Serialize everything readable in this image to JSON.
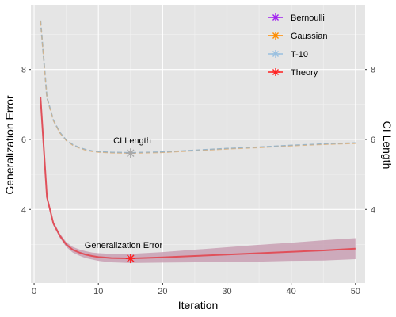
{
  "chart_data": {
    "type": "line",
    "xlabel": "Iteration",
    "ylabel": "Generalization Error",
    "y2label": "CI Length",
    "xlim": [
      -0.5,
      51.5
    ],
    "ylim": [
      1.9,
      9.85
    ],
    "x_ticks": [
      0,
      10,
      20,
      30,
      40,
      50
    ],
    "y_ticks": [
      4,
      6,
      8
    ],
    "y2_ticks": [
      4,
      6,
      8
    ],
    "grid": true,
    "legend_position": "top-right",
    "legend": [
      {
        "name": "Bernoulli",
        "color": "#a020f0"
      },
      {
        "name": "Gaussian",
        "color": "#ff8c00"
      },
      {
        "name": "T-10",
        "color": "#9ac0e0"
      },
      {
        "name": "Theory",
        "color": "#ff2020"
      }
    ],
    "x": [
      1,
      2,
      3,
      4,
      5,
      6,
      7,
      8,
      9,
      10,
      12,
      15,
      20,
      25,
      30,
      35,
      40,
      45,
      50
    ],
    "series": [
      {
        "name": "Generalization Error",
        "color": "#e0505a",
        "values": [
          7.2,
          4.35,
          3.6,
          3.25,
          3.0,
          2.85,
          2.77,
          2.71,
          2.67,
          2.64,
          2.61,
          2.6,
          2.63,
          2.67,
          2.71,
          2.75,
          2.79,
          2.83,
          2.88
        ],
        "band_upper": [
          7.25,
          4.4,
          3.66,
          3.31,
          3.07,
          2.93,
          2.86,
          2.81,
          2.77,
          2.75,
          2.73,
          2.73,
          2.78,
          2.85,
          2.92,
          2.99,
          3.05,
          3.12,
          3.18
        ],
        "band_lower": [
          7.15,
          4.3,
          3.54,
          3.19,
          2.93,
          2.77,
          2.68,
          2.61,
          2.57,
          2.53,
          2.49,
          2.47,
          2.48,
          2.49,
          2.5,
          2.51,
          2.53,
          2.54,
          2.58
        ]
      },
      {
        "name": "CI Length",
        "color": "#9ab5c8",
        "dashed": true,
        "values": [
          9.4,
          7.2,
          6.55,
          6.2,
          5.98,
          5.85,
          5.77,
          5.71,
          5.67,
          5.65,
          5.63,
          5.62,
          5.64,
          5.69,
          5.74,
          5.78,
          5.83,
          5.87,
          5.9
        ]
      }
    ],
    "markers": [
      {
        "x": 15,
        "y": 5.61,
        "label": "CI Length",
        "color": "#a8a8a8"
      },
      {
        "x": 15,
        "y": 2.6,
        "label": "Generalization Error",
        "color": "#ff2020"
      }
    ]
  }
}
